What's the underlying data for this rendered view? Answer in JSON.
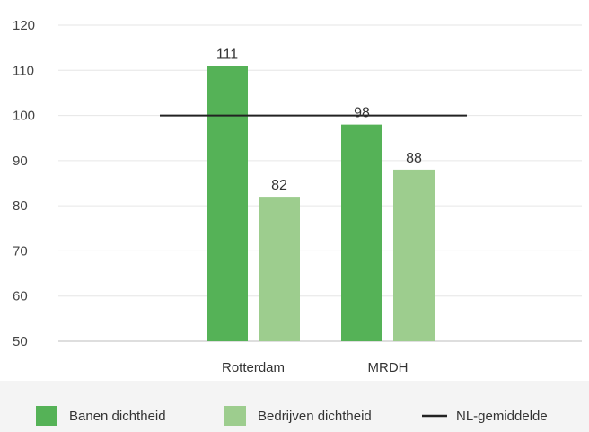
{
  "chart_data": {
    "type": "bar",
    "title": "",
    "xlabel": "",
    "ylabel": "",
    "categories": [
      "Rotterdam",
      "MRDH"
    ],
    "series": [
      {
        "name": "Banen dichtheid",
        "values": [
          111,
          98
        ],
        "color": "#55b257"
      },
      {
        "name": "Bedrijven dichtheid",
        "values": [
          82,
          88
        ],
        "color": "#9dcd8e"
      }
    ],
    "reference_line": {
      "name": "NL-gemiddelde",
      "value": 100,
      "color": "#222222"
    },
    "ylim": [
      50,
      120
    ],
    "yticks": [
      "50",
      "60",
      "70",
      "80",
      "90",
      "100",
      "110",
      "120"
    ],
    "data_labels": [
      [
        "111",
        "98"
      ],
      [
        "82",
        "88"
      ]
    ],
    "grid": true,
    "legend_position": "bottom"
  }
}
